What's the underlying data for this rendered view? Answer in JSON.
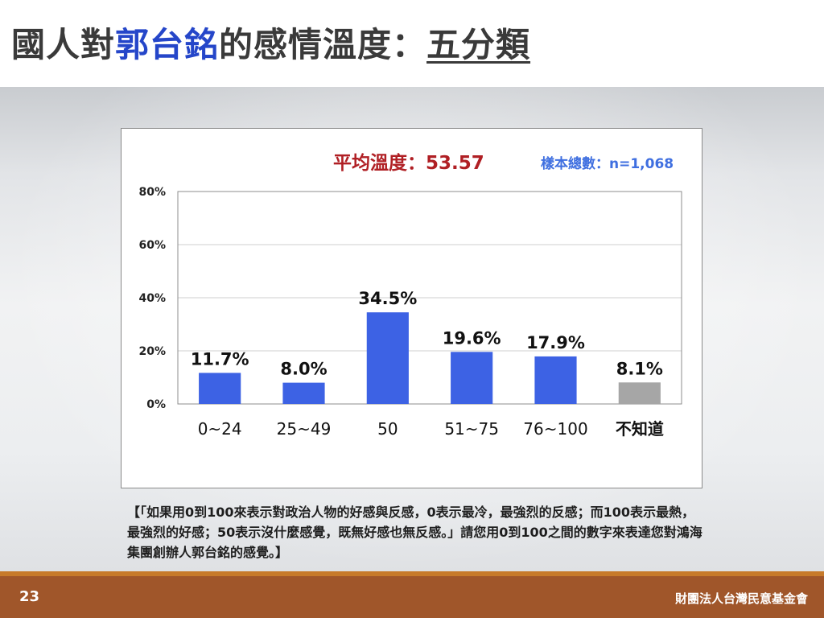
{
  "slide": {
    "title_prefix": "國人對",
    "title_name": "郭台銘",
    "title_middle": "的感情溫度：",
    "title_category": "五分類",
    "avg_label": "平均溫度：53.57",
    "sample_label": "樣本總數：n=1,068",
    "question_text": "【「如果用0到100來表示對政治人物的好感與反感，0表示最冷，最強烈的反感；而100表示最熱，最強烈的好感；50表示沒什麼感覺，既無好感也無反感。」請您用0到100之間的數字來表達您對鴻海集團創辦人郭台銘的感覺。】",
    "page_number": "23",
    "organization": "財團法人台灣民意基金會"
  },
  "colors": {
    "bar": "#3d62e4",
    "bar_unknown": "#a6a6a6",
    "title_highlight": "#2546c9",
    "avg_text": "#b01f24",
    "sample_text": "#3f6fe0",
    "footer": "#a0562a"
  },
  "chart_data": {
    "type": "bar",
    "categories": [
      "0~24",
      "25~49",
      "50",
      "51~75",
      "76~100",
      "不知道"
    ],
    "values": [
      11.7,
      8.0,
      34.5,
      19.6,
      17.9,
      8.1
    ],
    "value_labels": [
      "11.7%",
      "8.0%",
      "34.5%",
      "19.6%",
      "17.9%",
      "8.1%"
    ],
    "bar_colors": [
      "#3d62e4",
      "#3d62e4",
      "#3d62e4",
      "#3d62e4",
      "#3d62e4",
      "#a6a6a6"
    ],
    "ylim": [
      0,
      80
    ],
    "y_ticks": [
      0,
      20,
      40,
      60,
      80
    ],
    "y_tick_labels": [
      "0%",
      "20%",
      "40%",
      "60%",
      "80%"
    ],
    "grid": true,
    "xlabel": "",
    "ylabel": ""
  }
}
